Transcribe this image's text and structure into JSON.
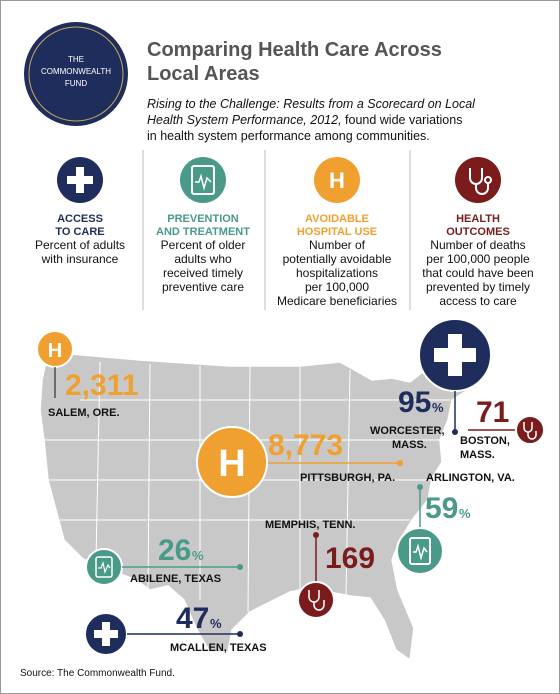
{
  "logo": [
    "THE",
    "COMMONWEALTH",
    "FUND"
  ],
  "header": {
    "title": [
      "Comparing Health Care Across",
      "Local Areas"
    ],
    "subtitle": [
      "Rising to the Challenge: Results from a Scorecard on Local",
      "Health System Performance, 2012,",
      " found wide variations",
      "in health system performance among communities."
    ]
  },
  "measures": [
    {
      "heading": [
        "ACCESS",
        "TO CARE"
      ],
      "description": [
        "Percent of adults",
        "with insurance"
      ]
    },
    {
      "heading": [
        "PREVENTION",
        "AND TREATMENT"
      ],
      "description": [
        "Percent of older",
        "adults who",
        "received timely",
        "preventive care"
      ]
    },
    {
      "heading": [
        "AVOIDABLE",
        "HOSPITAL USE"
      ],
      "description": [
        "Number of",
        "potentially avoidable",
        "hospitalizations",
        "per 100,000",
        "Medicare beneficiaries"
      ]
    },
    {
      "heading": [
        "HEALTH",
        "OUTCOMES"
      ],
      "description": [
        "Number of deaths",
        "per 100,000 people",
        "that could have been",
        "prevented by timely",
        "access to care"
      ]
    }
  ],
  "icon_letter": "H",
  "callouts": [
    {
      "value": "2,311",
      "place": [
        "SALEM, ORE."
      ]
    },
    {
      "value": "95",
      "unit": "%",
      "place": [
        "WORCESTER,",
        "MASS."
      ]
    },
    {
      "value": "71",
      "place": [
        "BOSTON,",
        "MASS."
      ]
    },
    {
      "value": "8,773",
      "place": [
        "PITTSBURGH, PA."
      ]
    },
    {
      "value": "59",
      "unit": "%",
      "place": [
        "ARLINGTON, VA."
      ]
    },
    {
      "value": "169",
      "place": [
        "MEMPHIS, TENN."
      ]
    },
    {
      "value": "26",
      "unit": "%",
      "place": [
        "ABILENE, TEXAS"
      ]
    },
    {
      "value": "47",
      "unit": "%",
      "place": [
        "MCALLEN, TEXAS"
      ]
    }
  ],
  "source": "Source: The Commonwealth Fund."
}
